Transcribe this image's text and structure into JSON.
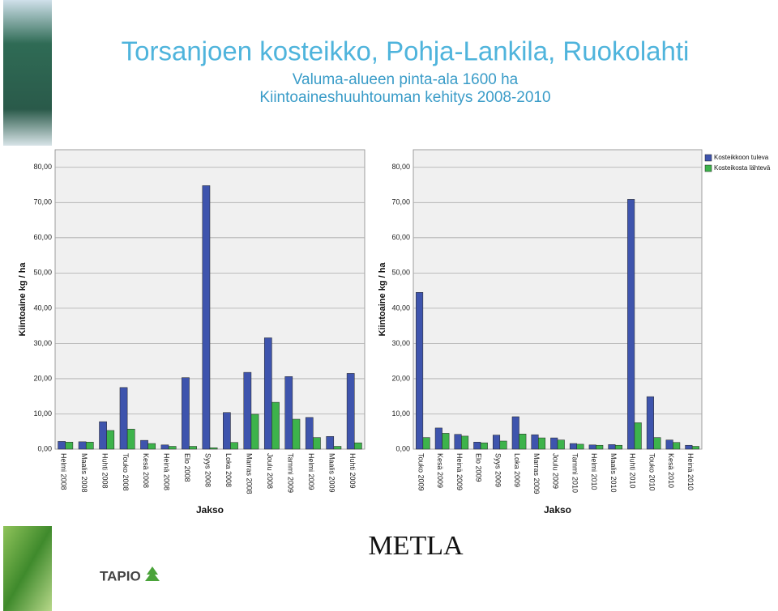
{
  "slide": {
    "title": "Torsanjoen kosteikko, Pohja-Lankila, Ruokolahti",
    "subtitle": "Valuma-alueen pinta-ala 1600 ha",
    "subtitle2": "Kiintoaineshuuhtouman kehitys 2008-2010",
    "logo": "TAPIO",
    "org": "METLA"
  },
  "chart_data": [
    {
      "type": "bar",
      "y_label": "Kiintoaine kg / ha",
      "x_label": "Jakso",
      "categories": [
        "Helmi 2008",
        "Maalis 2008",
        "Huhti 2008",
        "Touko 2008",
        "Kesä 2008",
        "Heinä 2008",
        "Elo 2008",
        "Syys 2008",
        "Loka 2008",
        "Marras 2008",
        "Joulu 2008",
        "Tammi 2009",
        "Helmi 2009",
        "Maalis 2009",
        "Huhti 2009"
      ],
      "series": [
        {
          "color": "#3e54ad",
          "values": [
            2.2,
            2.1,
            7.8,
            17.5,
            2.5,
            1.2,
            20.3,
            74.8,
            10.4,
            21.8,
            31.6,
            20.6,
            9.0,
            3.6,
            21.5
          ]
        },
        {
          "color": "#3db34b",
          "values": [
            2.0,
            2.0,
            5.3,
            5.7,
            1.6,
            0.8,
            0.8,
            0.4,
            1.9,
            9.9,
            13.3,
            8.5,
            3.3,
            0.8,
            1.8
          ]
        }
      ],
      "ylim": [
        0,
        85
      ],
      "yticks": [
        {
          "value": 0,
          "label": "0,00"
        },
        {
          "value": 10,
          "label": "10,00"
        },
        {
          "value": 20,
          "label": "20,00"
        },
        {
          "value": 30,
          "label": "30,00"
        },
        {
          "value": 40,
          "label": "40,00"
        },
        {
          "value": 50,
          "label": "50,00"
        },
        {
          "value": 60,
          "label": "60,00"
        },
        {
          "value": 70,
          "label": "70,00"
        },
        {
          "value": 80,
          "label": "80,00"
        }
      ],
      "grid": true
    },
    {
      "type": "bar",
      "y_label": "Kiintoaine kg / ha",
      "x_label": "Jakso",
      "categories": [
        "Touko 2009",
        "Kesä 2009",
        "Heinä 2009",
        "Elo 2009",
        "Syys 2009",
        "Loka 2009",
        "Marras 2009",
        "Joulu 2009",
        "Tammi 2010",
        "Helmi 2010",
        "Maalis 2010",
        "Huhti 2010",
        "Touko 2010",
        "Kesä 2010",
        "Heinä 2010"
      ],
      "series": [
        {
          "name": "Kosteikkoon tuleva",
          "color": "#3e54ad",
          "values": [
            44.5,
            6.0,
            4.2,
            2.0,
            4.0,
            9.2,
            4.1,
            3.2,
            1.6,
            1.2,
            1.3,
            70.9,
            14.9,
            2.6,
            1.1
          ]
        },
        {
          "name": "Kosteikosta lähtevä",
          "color": "#3db34b",
          "values": [
            3.3,
            4.5,
            3.7,
            1.8,
            2.3,
            4.3,
            3.2,
            2.6,
            1.4,
            1.1,
            1.1,
            7.5,
            3.3,
            1.9,
            0.8
          ]
        }
      ],
      "ylim": [
        0,
        85
      ],
      "yticks": [
        {
          "value": 0,
          "label": "0,00"
        },
        {
          "value": 10,
          "label": "10,00"
        },
        {
          "value": 20,
          "label": "20,00"
        },
        {
          "value": 30,
          "label": "30,00"
        },
        {
          "value": 40,
          "label": "40,00"
        },
        {
          "value": 50,
          "label": "50,00"
        },
        {
          "value": 60,
          "label": "60,00"
        },
        {
          "value": 70,
          "label": "70,00"
        },
        {
          "value": 80,
          "label": "80,00"
        }
      ],
      "grid": true,
      "legend": "top-right"
    }
  ]
}
